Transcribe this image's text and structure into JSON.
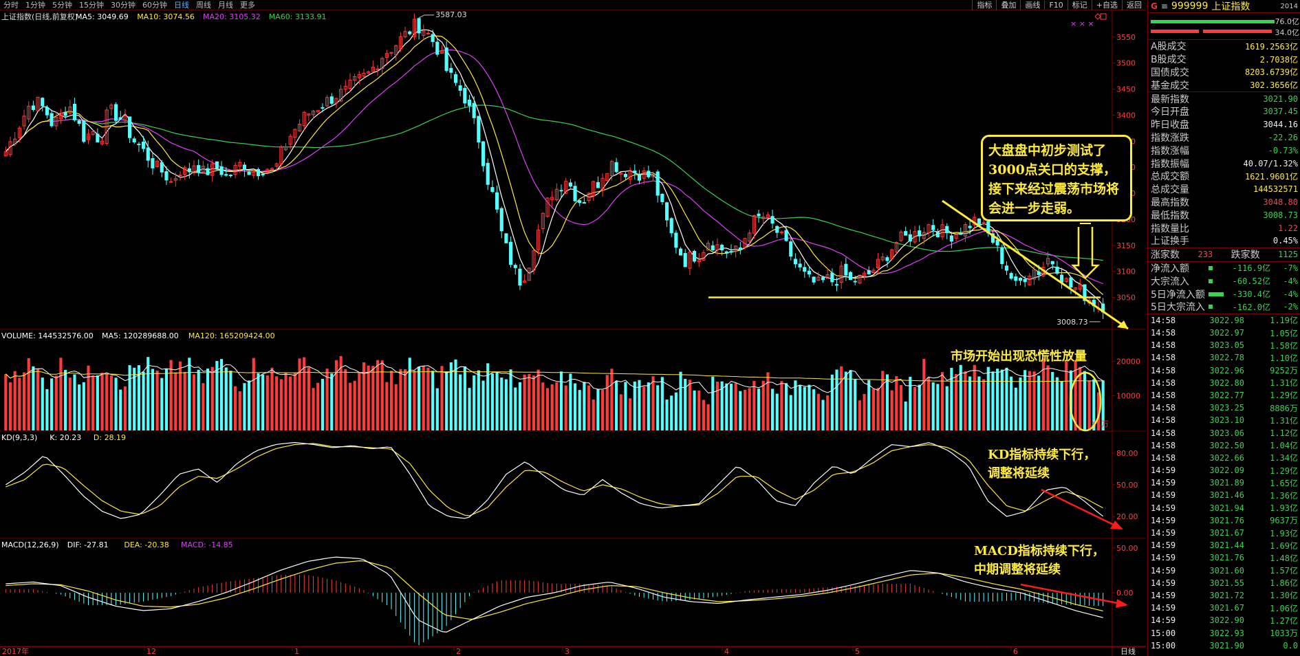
{
  "toolbar": {
    "periods": [
      "分时",
      "1分钟",
      "5分钟",
      "15分钟",
      "30分钟",
      "60分钟",
      "日线",
      "周线",
      "月线",
      "更多"
    ],
    "active_period": "日线",
    "tools": [
      "指标",
      "叠加",
      "画线",
      "F10",
      "标记",
      "+自选",
      "返回"
    ]
  },
  "main_panel": {
    "title": "上证指数(日线,前复权)",
    "ma_labels": [
      {
        "text": "MA5: 3049.69",
        "color": "#ffffff"
      },
      {
        "text": "MA10: 3074.56",
        "color": "#ffeb3b"
      },
      {
        "text": "MA20: 3105.32",
        "color": "#e040fb"
      },
      {
        "text": "MA60: 3133.91",
        "color": "#39d353"
      }
    ],
    "y_ticks": [
      "3550",
      "3500",
      "3450",
      "3400",
      "3350",
      "3300",
      "3250",
      "3200",
      "3150",
      "3100",
      "3050"
    ],
    "high_label": "3587.03",
    "low_label": "3008.73",
    "marks": "× × ×"
  },
  "volume_panel": {
    "labels": [
      {
        "text": "VOLUME: 144532576.00",
        "color": "#ffffff"
      },
      {
        "text": "MA5: 120289688.00",
        "color": "#ffffff"
      },
      {
        "text": "MA120: 165209424.00",
        "color": "#ffeb3b"
      }
    ],
    "y_ticks": [
      "20000",
      "10000"
    ],
    "unit": "X1万"
  },
  "kd_panel": {
    "labels": [
      {
        "text": "KD(9,3,3)",
        "color": "#ffffff"
      },
      {
        "text": "K: 20.23",
        "color": "#ffffff"
      },
      {
        "text": "D: 28.19",
        "color": "#ffeb3b"
      }
    ],
    "y_ticks": [
      "80.00",
      "50.00",
      "20.00"
    ]
  },
  "macd_panel": {
    "labels": [
      {
        "text": "MACD(12,26,9)",
        "color": "#ffffff"
      },
      {
        "text": "DIF: -27.81",
        "color": "#ffffff"
      },
      {
        "text": "DEA: -20.38",
        "color": "#ffeb3b"
      },
      {
        "text": "MACD: -14.85",
        "color": "#e040fb"
      }
    ],
    "y_ticks": [
      "50.00",
      "0.00"
    ]
  },
  "x_axis": {
    "labels": [
      "2017年",
      "12",
      "1",
      "2",
      "3",
      "4",
      "5",
      "6"
    ],
    "period_tag": "日线"
  },
  "annotations": {
    "callout": [
      "大盘盘中初步测试了",
      "3000点关口的支撑，",
      "接下来经过震荡市场将",
      "会进一步走弱。"
    ],
    "volume_note": "市场开始出现恐慌性放量",
    "kd_note": [
      "KD指标持续下行，",
      "调整将延续"
    ],
    "macd_note": [
      "MACD指标持续下行，",
      "中期调整将延续"
    ]
  },
  "right_panel": {
    "code": "999999",
    "name": "上证指数",
    "extra": "2014",
    "bar_values": [
      "76.0亿",
      "34.0亿"
    ],
    "turnover": [
      {
        "k": "A股成交",
        "v": "1619.2563亿",
        "c": "yel"
      },
      {
        "k": "B股成交",
        "v": "2.7038亿",
        "c": "yel"
      },
      {
        "k": "国债成交",
        "v": "8203.6739亿",
        "c": "yel"
      },
      {
        "k": "基金成交",
        "v": "302.3656亿",
        "c": "yel"
      }
    ],
    "quote": [
      {
        "k": "最新指数",
        "v": "3021.90",
        "c": "green"
      },
      {
        "k": "今日开盘",
        "v": "3037.45",
        "c": "green"
      },
      {
        "k": "昨日收盘",
        "v": "3044.16",
        "c": "white"
      },
      {
        "k": "指数涨跌",
        "v": "-22.26",
        "c": "green"
      },
      {
        "k": "指数涨幅",
        "v": "-0.73%",
        "c": "green"
      },
      {
        "k": "指数振幅",
        "v": "40.07/1.32%",
        "c": "white"
      },
      {
        "k": "总成交额",
        "v": "1621.9601亿",
        "c": "yel"
      },
      {
        "k": "总成交量",
        "v": "144532571",
        "c": "yel"
      },
      {
        "k": "最高指数",
        "v": "3048.80",
        "c": "red"
      },
      {
        "k": "最低指数",
        "v": "3008.73",
        "c": "green"
      },
      {
        "k": "指数量比",
        "v": "1.22",
        "c": "red"
      },
      {
        "k": "上证换手",
        "v": "0.45%",
        "c": "white"
      }
    ],
    "breadth": {
      "up_label": "涨家数",
      "up": "233",
      "down_label": "跌家数",
      "down": "1125"
    },
    "flows": [
      {
        "k": "净流入额",
        "v1": "-116.9亿",
        "v2": "-7%",
        "bar": 6
      },
      {
        "k": "大宗流入",
        "v1": "-60.52亿",
        "v2": "-4%",
        "bar": 6
      },
      {
        "k": "5日净流入额",
        "v1": "-330.4亿",
        "v2": "-4%",
        "bar": 22
      },
      {
        "k": "5日大宗流入",
        "v1": "-162.0亿",
        "v2": "-2%",
        "bar": 6
      }
    ],
    "ticks": [
      {
        "t": "14:58",
        "p": "3022.98",
        "q": "1.19亿"
      },
      {
        "t": "14:58",
        "p": "3022.97",
        "q": "1.05亿"
      },
      {
        "t": "14:58",
        "p": "3023.05",
        "q": "1.58亿"
      },
      {
        "t": "14:58",
        "p": "3022.78",
        "q": "1.10亿"
      },
      {
        "t": "14:58",
        "p": "3022.96",
        "q": "9252万"
      },
      {
        "t": "14:58",
        "p": "3022.80",
        "q": "1.31亿"
      },
      {
        "t": "14:58",
        "p": "3022.77",
        "q": "1.29亿"
      },
      {
        "t": "14:58",
        "p": "3023.25",
        "q": "8886万"
      },
      {
        "t": "14:58",
        "p": "3023.10",
        "q": "1.31亿"
      },
      {
        "t": "14:58",
        "p": "3023.06",
        "q": "1.12亿"
      },
      {
        "t": "14:58",
        "p": "3022.50",
        "q": "1.04亿"
      },
      {
        "t": "14:58",
        "p": "3022.66",
        "q": "1.34亿"
      },
      {
        "t": "14:59",
        "p": "3022.09",
        "q": "1.29亿"
      },
      {
        "t": "14:59",
        "p": "3021.89",
        "q": "1.65亿"
      },
      {
        "t": "14:59",
        "p": "3021.46",
        "q": "1.36亿"
      },
      {
        "t": "14:59",
        "p": "3021.94",
        "q": "1.93亿"
      },
      {
        "t": "14:59",
        "p": "3021.76",
        "q": "9637万"
      },
      {
        "t": "14:59",
        "p": "3021.67",
        "q": "1.93亿"
      },
      {
        "t": "14:59",
        "p": "3021.44",
        "q": "1.69亿"
      },
      {
        "t": "14:59",
        "p": "3021.76",
        "q": "1.48亿"
      },
      {
        "t": "14:59",
        "p": "3021.60",
        "q": "1.57亿"
      },
      {
        "t": "14:59",
        "p": "3021.55",
        "q": "1.86亿"
      },
      {
        "t": "14:59",
        "p": "3021.72",
        "q": "1.30亿"
      },
      {
        "t": "14:59",
        "p": "3021.67",
        "q": "1.06亿"
      },
      {
        "t": "14:59",
        "p": "3022.90",
        "q": "1.27亿"
      },
      {
        "t": "15:00",
        "p": "3022.93",
        "q": "1033万"
      },
      {
        "t": "15:00",
        "p": "3021.90",
        "q": "0.0"
      }
    ]
  },
  "colors": {
    "up": "#ff3b3b",
    "down": "#54ffff",
    "grid": "#6b0000",
    "ma5": "#ffffff",
    "ma10": "#ffeb3b",
    "ma20": "#e040fb",
    "ma60": "#39d353"
  },
  "chart_data": {
    "type": "candlestick",
    "title": "上证指数(日线,前复权)",
    "x_period_labels": [
      "2017年",
      "12",
      "1",
      "2",
      "3",
      "4",
      "5",
      "6"
    ],
    "price_ylim": [
      2990,
      3600
    ],
    "price_ticks": [
      3050,
      3100,
      3150,
      3200,
      3250,
      3300,
      3350,
      3400,
      3450,
      3500,
      3550
    ],
    "price_anchors": [
      3330,
      3360,
      3390,
      3420,
      3425,
      3410,
      3380,
      3400,
      3420,
      3390,
      3355,
      3370,
      3350,
      3410,
      3400,
      3390,
      3355,
      3340,
      3320,
      3300,
      3290,
      3270,
      3295,
      3290,
      3310,
      3290,
      3295,
      3300,
      3280,
      3295,
      3310,
      3290,
      3295,
      3300,
      3290,
      3330,
      3360,
      3380,
      3400,
      3410,
      3420,
      3430,
      3440,
      3445,
      3460,
      3470,
      3480,
      3500,
      3520,
      3530,
      3545,
      3560,
      3575,
      3565,
      3545,
      3520,
      3480,
      3460,
      3440,
      3400,
      3350,
      3280,
      3230,
      3160,
      3120,
      3080,
      3100,
      3160,
      3200,
      3250,
      3260,
      3280,
      3250,
      3230,
      3260,
      3270,
      3300,
      3310,
      3290,
      3295,
      3290,
      3285,
      3280,
      3230,
      3180,
      3150,
      3120,
      3130,
      3135,
      3160,
      3150,
      3140,
      3135,
      3140,
      3180,
      3200,
      3205,
      3190,
      3170,
      3145,
      3115,
      3095,
      3080,
      3075,
      3085,
      3080,
      3100,
      3080,
      3085,
      3090,
      3105,
      3120,
      3140,
      3160,
      3165,
      3170,
      3180,
      3190,
      3180,
      3175,
      3170,
      3180,
      3190,
      3200,
      3180,
      3160,
      3130,
      3100,
      3070,
      3090,
      3105,
      3100,
      3125,
      3115,
      3085,
      3070,
      3065,
      3050,
      3040,
      3021.9
    ],
    "ma_final": {
      "MA5": 3049.69,
      "MA10": 3074.56,
      "MA20": 3105.32,
      "MA60": 3133.91
    },
    "high": 3587.03,
    "low": 3008.73,
    "support_level": 3050,
    "volume": {
      "unit": "万",
      "ylim": [
        0,
        29000
      ],
      "last": 144532576,
      "MA5": 120289688,
      "MA120": 165209424
    },
    "kd": {
      "ylim": [
        0,
        100
      ],
      "ticks": [
        20,
        50,
        80
      ],
      "K": 20.23,
      "D": 28.19,
      "k_anchors": [
        50,
        62,
        78,
        60,
        40,
        25,
        18,
        22,
        40,
        60,
        65,
        52,
        70,
        82,
        88,
        90,
        88,
        85,
        87,
        84,
        86,
        60,
        30,
        20,
        18,
        35,
        60,
        72,
        58,
        45,
        40,
        55,
        42,
        32,
        28,
        30,
        32,
        50,
        68,
        55,
        35,
        30,
        52,
        68,
        60,
        75,
        88,
        86,
        90,
        82,
        68,
        35,
        20,
        25,
        45,
        48,
        35,
        20
      ],
      "d_anchors": [
        48,
        55,
        70,
        66,
        50,
        35,
        25,
        22,
        30,
        48,
        58,
        56,
        65,
        76,
        84,
        88,
        89,
        86,
        86,
        85,
        84,
        70,
        45,
        28,
        20,
        28,
        48,
        64,
        62,
        52,
        44,
        50,
        46,
        38,
        32,
        30,
        31,
        42,
        58,
        58,
        45,
        36,
        45,
        60,
        62,
        70,
        82,
        86,
        88,
        85,
        74,
        50,
        30,
        25,
        35,
        44,
        38,
        28
      ]
    },
    "macd": {
      "ylim": [
        -60,
        60
      ],
      "ticks": [
        0,
        50
      ],
      "DIF": -27.81,
      "DEA": -20.38,
      "MACD": -14.85,
      "dif_anchors": [
        10,
        12,
        8,
        -5,
        -15,
        -20,
        -18,
        -10,
        0,
        12,
        25,
        35,
        40,
        38,
        20,
        -30,
        -45,
        -30,
        -15,
        -5,
        0,
        8,
        12,
        5,
        -5,
        -10,
        -12,
        -8,
        -5,
        -2,
        3,
        10,
        18,
        25,
        22,
        12,
        5,
        0,
        -10,
        -20,
        -27.81
      ],
      "dea_anchors": [
        8,
        10,
        9,
        2,
        -8,
        -15,
        -16,
        -13,
        -6,
        4,
        15,
        25,
        33,
        36,
        28,
        0,
        -25,
        -30,
        -22,
        -12,
        -5,
        3,
        8,
        7,
        0,
        -6,
        -10,
        -9,
        -7,
        -4,
        0,
        6,
        13,
        20,
        22,
        17,
        10,
        4,
        -4,
        -13,
        -20.38
      ]
    }
  }
}
